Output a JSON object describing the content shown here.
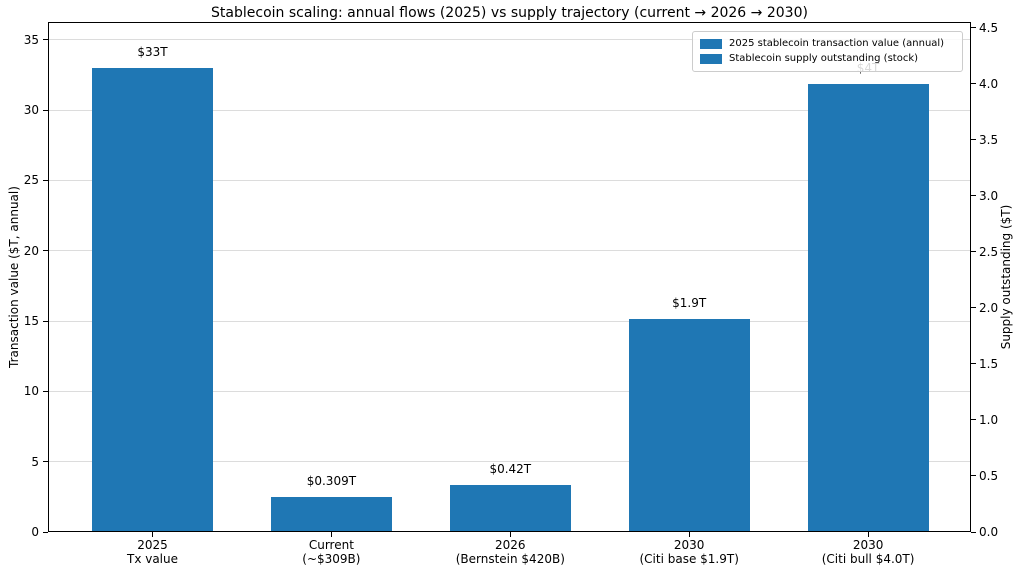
{
  "chart_data": {
    "type": "bar",
    "title": "Stablecoin scaling: annual flows (2025) vs supply trajectory (current → 2026 → 2030)",
    "bar_color": "#1f77b4",
    "grid": true,
    "legend_position": "upper right",
    "left_axis": {
      "label": "Transaction value ($T, annual)",
      "ticks": [
        0,
        5,
        10,
        15,
        20,
        25,
        30,
        35
      ],
      "max": 36.27
    },
    "right_axis": {
      "label": "Supply outstanding ($T)",
      "ticks": [
        "0.0",
        "0.5",
        "1.0",
        "1.5",
        "2.0",
        "2.5",
        "3.0",
        "3.5",
        "4.0",
        "4.5"
      ],
      "max": 4.55
    },
    "legend": {
      "items": [
        {
          "label": "2025 stablecoin transaction value (annual)"
        },
        {
          "label": "Stablecoin supply outstanding (stock)"
        }
      ]
    },
    "bars": [
      {
        "label": "2025",
        "sublabel": "Tx value",
        "value": 33,
        "axis": "left",
        "annotation": "$33T"
      },
      {
        "label": "Current",
        "sublabel": "(~$309B)",
        "value": 0.309,
        "axis": "right",
        "annotation": "$0.309T"
      },
      {
        "label": "2026",
        "sublabel": "(Bernstein $420B)",
        "value": 0.42,
        "axis": "right",
        "annotation": "$0.42T"
      },
      {
        "label": "2030",
        "sublabel": "(Citi base $1.9T)",
        "value": 1.9,
        "axis": "right",
        "annotation": "$1.9T"
      },
      {
        "label": "2030",
        "sublabel": "(Citi bull $4.0T)",
        "value": 4.0,
        "axis": "right",
        "annotation": "$4T"
      }
    ]
  }
}
